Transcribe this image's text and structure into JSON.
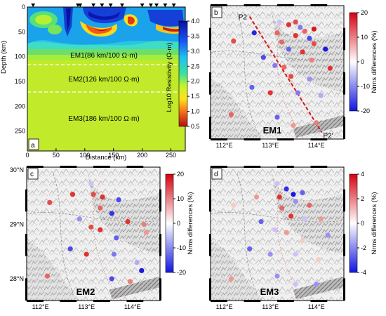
{
  "panel_a": {
    "letter": "a",
    "xlabel": "Distance (km)",
    "ylabel": "Depth (km)",
    "xticks": [
      "0",
      "50",
      "100",
      "150",
      "200",
      "250"
    ],
    "yticks": [
      "0",
      "50",
      "100",
      "150",
      "200",
      "250"
    ],
    "layers": [
      "EM1(86 km/100 Ω·m)",
      "EM2(126 km/100 Ω·m)",
      "EM3(186 km/100 Ω·m)"
    ],
    "colorbar": {
      "title": "Log10 Resistivity (Ω·m)",
      "ticks": [
        "4.0",
        "3.5",
        "3.0",
        "2.5",
        "2.0",
        "1.5",
        "1.0",
        "0.5"
      ]
    }
  },
  "panel_b": {
    "letter": "b",
    "label": "EM1",
    "profile_start": "P2",
    "profile_end": "P2'",
    "xticks": [
      "112°E",
      "113°E",
      "114°E"
    ],
    "colorbar": {
      "title": "Nrms differences (%)",
      "ticks": [
        "20",
        "10",
        "0",
        "-10",
        "-20"
      ]
    }
  },
  "panel_c": {
    "letter": "c",
    "label": "EM2",
    "xticks": [
      "112°E",
      "113°E",
      "114°E"
    ],
    "yticks": [
      "30°N",
      "29°N",
      "28°N"
    ],
    "colorbar": {
      "title": "Nrms differences (%)",
      "ticks": [
        "20",
        "10",
        "0",
        "-10",
        "-20"
      ]
    }
  },
  "panel_d": {
    "letter": "d",
    "label": "EM3",
    "xticks": [
      "112°E",
      "113°E",
      "114°E"
    ],
    "colorbar": {
      "title": "Nrms differences (%)",
      "ticks": [
        "4",
        "2",
        "0",
        "-2",
        "-4"
      ]
    }
  },
  "chart_data": [
    {
      "type": "heatmap",
      "panel": "a",
      "xlabel": "Distance (km)",
      "ylabel": "Depth (km)",
      "xlim": [
        0,
        275
      ],
      "ylim": [
        290,
        0
      ],
      "layers": [
        {
          "name": "EM1",
          "top_km": 85,
          "bottom_km": 127,
          "depth_km": 86,
          "resistivity_ohm_m": 100
        },
        {
          "name": "EM2",
          "top_km": 127,
          "bottom_km": 186,
          "depth_km": 126,
          "resistivity_ohm_m": 100
        },
        {
          "name": "EM3",
          "top_km": 186,
          "bottom_km": 290,
          "depth_km": 186,
          "resistivity_ohm_m": 100
        }
      ],
      "stations_km": [
        10,
        88,
        92,
        115,
        130,
        145,
        165,
        200,
        215,
        225,
        240,
        255
      ],
      "colorbar_range": [
        0.5,
        4.0
      ]
    },
    {
      "type": "scatter",
      "panel": "b",
      "x_label": "Longitude",
      "xlim": [
        111.7,
        114.6
      ],
      "ylim": [
        27.6,
        30.05
      ],
      "xticks": [
        112,
        113,
        114
      ],
      "value_range": [
        -20,
        20
      ],
      "profile": [
        [
          112.55,
          29.85
        ],
        [
          114.12,
          27.72
        ]
      ],
      "points": [
        [
          113.2,
          29.75,
          -4
        ],
        [
          113.4,
          29.7,
          16
        ],
        [
          113.55,
          29.75,
          14
        ],
        [
          113.65,
          29.65,
          -10
        ],
        [
          113.75,
          29.58,
          12
        ],
        [
          113.95,
          29.62,
          18
        ],
        [
          113.85,
          29.45,
          -14
        ],
        [
          112.65,
          29.55,
          -17
        ],
        [
          113.15,
          29.55,
          12
        ],
        [
          113.55,
          29.5,
          16
        ],
        [
          113.95,
          29.35,
          14
        ],
        [
          114.2,
          29.25,
          -18
        ],
        [
          112.2,
          29.4,
          14
        ],
        [
          113.25,
          29.38,
          12
        ],
        [
          113.4,
          29.25,
          -12
        ],
        [
          113.7,
          29.2,
          16
        ],
        [
          113.9,
          29.05,
          10
        ],
        [
          112.85,
          29.1,
          -14
        ],
        [
          113.1,
          28.95,
          -10
        ],
        [
          113.3,
          28.92,
          12
        ],
        [
          114.3,
          28.9,
          16
        ],
        [
          113.45,
          28.75,
          14
        ],
        [
          113.85,
          28.7,
          -8
        ],
        [
          112.6,
          28.55,
          -12
        ],
        [
          113.0,
          28.45,
          16
        ],
        [
          113.6,
          28.45,
          -10
        ],
        [
          114.1,
          28.4,
          -6
        ],
        [
          112.15,
          28.05,
          12
        ],
        [
          113.15,
          28.0,
          -12
        ],
        [
          113.5,
          27.85,
          8
        ],
        [
          114.0,
          27.9,
          10
        ]
      ]
    },
    {
      "type": "scatter",
      "panel": "c",
      "xlim": [
        111.7,
        114.6
      ],
      "ylim": [
        27.6,
        30.05
      ],
      "xticks": [
        112,
        113,
        114
      ],
      "yticks": [
        28,
        29,
        30
      ],
      "value_range": [
        -20,
        20
      ],
      "points": [
        [
          113.1,
          29.75,
          -4
        ],
        [
          112.7,
          29.55,
          16
        ],
        [
          113.15,
          29.55,
          14
        ],
        [
          113.35,
          29.5,
          16
        ],
        [
          113.7,
          29.45,
          -14
        ],
        [
          112.2,
          29.4,
          14
        ],
        [
          113.3,
          29.3,
          12
        ],
        [
          113.55,
          29.2,
          -16
        ],
        [
          113.9,
          29.05,
          16
        ],
        [
          114.25,
          29.0,
          10
        ],
        [
          112.85,
          29.1,
          -8
        ],
        [
          113.1,
          28.95,
          14
        ],
        [
          113.3,
          28.9,
          16
        ],
        [
          113.65,
          28.75,
          -12
        ],
        [
          114.3,
          28.85,
          8
        ],
        [
          112.65,
          28.55,
          -14
        ],
        [
          113.0,
          28.45,
          16
        ],
        [
          113.6,
          28.45,
          -10
        ],
        [
          114.1,
          28.3,
          -6
        ],
        [
          112.15,
          28.05,
          12
        ],
        [
          113.55,
          28.0,
          -14
        ],
        [
          113.95,
          27.95,
          10
        ],
        [
          114.2,
          28.15,
          -18
        ]
      ]
    },
    {
      "type": "scatter",
      "panel": "d",
      "xlim": [
        111.7,
        114.6
      ],
      "ylim": [
        27.6,
        30.05
      ],
      "xticks": [
        112,
        113,
        114
      ],
      "value_range": [
        -5,
        5
      ],
      "points": [
        [
          113.15,
          29.75,
          -1
        ],
        [
          113.35,
          29.65,
          -4
        ],
        [
          113.5,
          29.55,
          -4.5
        ],
        [
          113.7,
          29.58,
          -3
        ],
        [
          112.7,
          29.5,
          2
        ],
        [
          113.2,
          29.5,
          4
        ],
        [
          113.55,
          29.42,
          -2
        ],
        [
          113.85,
          29.35,
          3
        ],
        [
          112.2,
          29.35,
          1
        ],
        [
          113.25,
          29.3,
          3
        ],
        [
          113.45,
          29.15,
          4
        ],
        [
          113.75,
          29.1,
          -1
        ],
        [
          114.1,
          29.1,
          2
        ],
        [
          112.8,
          29.05,
          -3
        ],
        [
          113.1,
          28.9,
          -1
        ],
        [
          113.35,
          28.85,
          2
        ],
        [
          113.7,
          28.7,
          1
        ],
        [
          114.25,
          28.8,
          -2
        ],
        [
          112.55,
          28.55,
          -3
        ],
        [
          113.0,
          28.45,
          -2
        ],
        [
          113.55,
          28.45,
          -1
        ],
        [
          114.05,
          28.35,
          1
        ],
        [
          112.15,
          28.0,
          2
        ],
        [
          113.15,
          28.05,
          -2
        ],
        [
          113.55,
          27.9,
          -1
        ],
        [
          114.0,
          27.9,
          -2
        ]
      ]
    }
  ]
}
